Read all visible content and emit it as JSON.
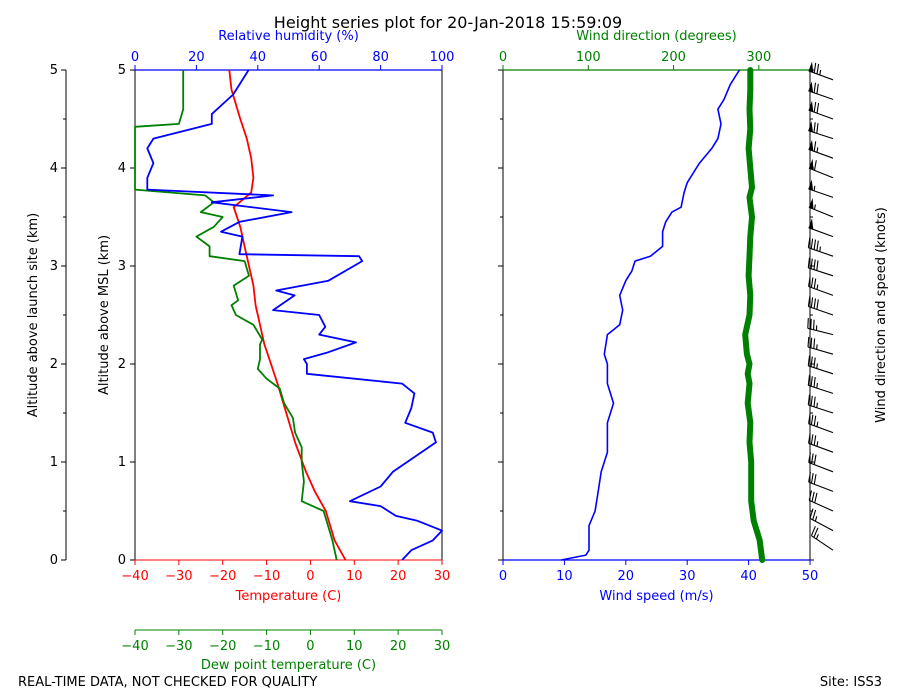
{
  "title": "Height series plot for 20-Jan-2018 15:59:09",
  "footer_left": "REAL-TIME DATA, NOT CHECKED FOR QUALITY",
  "footer_right": "Site: ISS3",
  "colors": {
    "temperature": "#ff0000",
    "dewpoint": "#008000",
    "humidity": "#0000ff",
    "wind_speed": "#0000ff",
    "wind_direction": "#008000",
    "axis": "#000000"
  },
  "chart_data": [
    {
      "type": "line",
      "name": "thermodynamic-panel",
      "ylabel_outer": "Altitude above launch site (km)",
      "ylabel_inner": "Altitude above MSL (km)",
      "ylim": [
        0,
        5
      ],
      "yticks": [
        0,
        1,
        2,
        3,
        4,
        5
      ],
      "x_bottom": {
        "label": "Temperature (C)",
        "range": [
          -40,
          30
        ],
        "ticks": [
          -40,
          -30,
          -20,
          -10,
          0,
          10,
          20,
          30
        ]
      },
      "x_top": {
        "label": "Relative humidity (%)",
        "range": [
          0,
          100
        ],
        "ticks": [
          0,
          20,
          40,
          60,
          80,
          100
        ]
      },
      "x_extra": {
        "label": "Dew point temperature (C)",
        "range": [
          -40,
          30
        ],
        "ticks": [
          -40,
          -30,
          -20,
          -10,
          0,
          10,
          20,
          30
        ]
      },
      "series": [
        {
          "name": "Temperature",
          "axis": "x_bottom",
          "points": [
            [
              8.0,
              0
            ],
            [
              5.5,
              0.2
            ],
            [
              3.5,
              0.5
            ],
            [
              1.0,
              0.7
            ],
            [
              -1.0,
              0.9
            ],
            [
              -3.5,
              1.2
            ],
            [
              -5.5,
              1.5
            ],
            [
              -7.5,
              1.8
            ],
            [
              -9.0,
              2.0
            ],
            [
              -10.5,
              2.2
            ],
            [
              -11.5,
              2.4
            ],
            [
              -12.0,
              2.5
            ],
            [
              -12.5,
              2.6
            ],
            [
              -13.0,
              2.8
            ],
            [
              -14.0,
              3.0
            ],
            [
              -15.0,
              3.2
            ],
            [
              -16.0,
              3.4
            ],
            [
              -17.5,
              3.6
            ],
            [
              -13.5,
              3.75
            ],
            [
              -13.0,
              3.9
            ],
            [
              -13.5,
              4.1
            ],
            [
              -14.5,
              4.3
            ],
            [
              -16.0,
              4.5
            ],
            [
              -18.0,
              4.8
            ],
            [
              -18.5,
              5.0
            ]
          ]
        },
        {
          "name": "Dew point",
          "axis": "x_extra",
          "points": [
            [
              6.0,
              0
            ],
            [
              5.0,
              0.2
            ],
            [
              3.0,
              0.5
            ],
            [
              -2.0,
              0.6
            ],
            [
              -1.5,
              0.8
            ],
            [
              -2.0,
              1.0
            ],
            [
              -2.0,
              1.15
            ],
            [
              -3.5,
              1.3
            ],
            [
              -4.0,
              1.45
            ],
            [
              -6.0,
              1.6
            ],
            [
              -7.0,
              1.75
            ],
            [
              -10.0,
              1.85
            ],
            [
              -12.0,
              1.95
            ],
            [
              -11.5,
              2.05
            ],
            [
              -11.5,
              2.2
            ],
            [
              -11.0,
              2.25
            ],
            [
              -13.0,
              2.4
            ],
            [
              -17.0,
              2.5
            ],
            [
              -18.0,
              2.6
            ],
            [
              -16.5,
              2.65
            ],
            [
              -17.5,
              2.8
            ],
            [
              -14.0,
              2.9
            ],
            [
              -15.0,
              3.05
            ],
            [
              -23.0,
              3.1
            ],
            [
              -23.0,
              3.2
            ],
            [
              -26.0,
              3.3
            ],
            [
              -22.0,
              3.4
            ],
            [
              -20.0,
              3.5
            ],
            [
              -25.0,
              3.55
            ],
            [
              -22.0,
              3.65
            ],
            [
              -24.0,
              3.72
            ],
            [
              -40.0,
              3.78
            ],
            [
              -40.0,
              4.2
            ],
            [
              -40.0,
              4.42
            ],
            [
              -30.0,
              4.45
            ],
            [
              -29.0,
              4.6
            ],
            [
              -29.0,
              4.8
            ],
            [
              -29.0,
              5.0
            ]
          ]
        },
        {
          "name": "Relative humidity",
          "axis": "x_top",
          "points": [
            [
              87,
              0
            ],
            [
              90,
              0.1
            ],
            [
              97,
              0.2
            ],
            [
              100,
              0.3
            ],
            [
              92,
              0.4
            ],
            [
              85,
              0.45
            ],
            [
              80,
              0.55
            ],
            [
              70,
              0.6
            ],
            [
              80,
              0.75
            ],
            [
              84,
              0.9
            ],
            [
              98,
              1.2
            ],
            [
              97,
              1.3
            ],
            [
              88,
              1.4
            ],
            [
              90,
              1.55
            ],
            [
              91,
              1.7
            ],
            [
              87,
              1.8
            ],
            [
              56,
              1.9
            ],
            [
              56,
              2.0
            ],
            [
              55,
              2.05
            ],
            [
              63,
              2.12
            ],
            [
              72,
              2.22
            ],
            [
              60,
              2.3
            ],
            [
              62,
              2.38
            ],
            [
              60,
              2.5
            ],
            [
              45,
              2.55
            ],
            [
              52,
              2.7
            ],
            [
              46,
              2.75
            ],
            [
              63,
              2.85
            ],
            [
              74,
              3.05
            ],
            [
              73,
              3.1
            ],
            [
              34,
              3.12
            ],
            [
              35,
              3.3
            ],
            [
              28,
              3.35
            ],
            [
              34,
              3.45
            ],
            [
              51,
              3.55
            ],
            [
              25,
              3.65
            ],
            [
              45,
              3.72
            ],
            [
              4,
              3.78
            ],
            [
              4,
              3.9
            ],
            [
              6,
              4.05
            ],
            [
              4,
              4.2
            ],
            [
              6,
              4.3
            ],
            [
              25,
              4.45
            ],
            [
              25,
              4.55
            ],
            [
              32,
              4.75
            ],
            [
              37,
              5.0
            ]
          ]
        }
      ]
    },
    {
      "type": "line",
      "name": "wind-panel",
      "ylim": [
        0,
        5
      ],
      "yticks": [
        0,
        1,
        2,
        3,
        4,
        5
      ],
      "x_bottom": {
        "label": "Wind speed (m/s)",
        "range": [
          0,
          50
        ],
        "ticks": [
          0,
          10,
          20,
          30,
          40,
          50
        ]
      },
      "x_top": {
        "label": "Wind direction (degrees)",
        "range": [
          0,
          360
        ],
        "ticks": [
          0,
          100,
          200,
          300
        ]
      },
      "right_label": "Wind direction and speed (knots)",
      "series": [
        {
          "name": "Wind speed",
          "axis": "x_bottom",
          "points": [
            [
              9.5,
              0
            ],
            [
              13.5,
              0.05
            ],
            [
              14.0,
              0.1
            ],
            [
              14.0,
              0.35
            ],
            [
              15.0,
              0.5
            ],
            [
              15.5,
              0.7
            ],
            [
              16.0,
              0.9
            ],
            [
              17.0,
              1.1
            ],
            [
              17.0,
              1.4
            ],
            [
              18.0,
              1.6
            ],
            [
              17.0,
              1.8
            ],
            [
              17.0,
              2.0
            ],
            [
              16.5,
              2.1
            ],
            [
              17.0,
              2.3
            ],
            [
              19.0,
              2.4
            ],
            [
              19.5,
              2.55
            ],
            [
              19.0,
              2.7
            ],
            [
              20.0,
              2.85
            ],
            [
              21.0,
              2.95
            ],
            [
              21.5,
              3.05
            ],
            [
              24.0,
              3.1
            ],
            [
              26.0,
              3.2
            ],
            [
              26.0,
              3.35
            ],
            [
              26.5,
              3.45
            ],
            [
              27.5,
              3.55
            ],
            [
              29.0,
              3.6
            ],
            [
              29.5,
              3.75
            ],
            [
              30.0,
              3.85
            ],
            [
              31.5,
              4.0
            ],
            [
              32.0,
              4.05
            ],
            [
              34.0,
              4.2
            ],
            [
              35.0,
              4.3
            ],
            [
              35.5,
              4.45
            ],
            [
              35.0,
              4.6
            ],
            [
              36.0,
              4.7
            ],
            [
              37.0,
              4.85
            ],
            [
              38.5,
              5.0
            ]
          ]
        },
        {
          "name": "Wind direction",
          "axis": "x_top",
          "points": [
            [
              304,
              0
            ],
            [
              301,
              0.2
            ],
            [
              294,
              0.4
            ],
            [
              291,
              0.6
            ],
            [
              291,
              1.0
            ],
            [
              289,
              1.2
            ],
            [
              290,
              1.4
            ],
            [
              287,
              1.6
            ],
            [
              289,
              1.8
            ],
            [
              287,
              1.9
            ],
            [
              289,
              2.0
            ],
            [
              286,
              2.1
            ],
            [
              284,
              2.3
            ],
            [
              289,
              2.5
            ],
            [
              290,
              2.7
            ],
            [
              288,
              2.9
            ],
            [
              289,
              3.1
            ],
            [
              290,
              3.3
            ],
            [
              292,
              3.5
            ],
            [
              289,
              3.7
            ],
            [
              292,
              3.8
            ],
            [
              290,
              4.0
            ],
            [
              288,
              4.2
            ],
            [
              290,
              4.4
            ],
            [
              289,
              4.6
            ],
            [
              290,
              4.8
            ],
            [
              290,
              5.0
            ]
          ]
        }
      ],
      "barbs": [
        {
          "alt": 0.1,
          "dir": 304,
          "kt": 25
        },
        {
          "alt": 0.3,
          "dir": 298,
          "kt": 27
        },
        {
          "alt": 0.5,
          "dir": 294,
          "kt": 29
        },
        {
          "alt": 0.7,
          "dir": 291,
          "kt": 30
        },
        {
          "alt": 0.9,
          "dir": 291,
          "kt": 31
        },
        {
          "alt": 1.1,
          "dir": 290,
          "kt": 33
        },
        {
          "alt": 1.3,
          "dir": 290,
          "kt": 33
        },
        {
          "alt": 1.5,
          "dir": 288,
          "kt": 34
        },
        {
          "alt": 1.7,
          "dir": 288,
          "kt": 35
        },
        {
          "alt": 1.9,
          "dir": 288,
          "kt": 33
        },
        {
          "alt": 2.1,
          "dir": 286,
          "kt": 33
        },
        {
          "alt": 2.3,
          "dir": 284,
          "kt": 33
        },
        {
          "alt": 2.5,
          "dir": 289,
          "kt": 38
        },
        {
          "alt": 2.7,
          "dir": 290,
          "kt": 37
        },
        {
          "alt": 2.9,
          "dir": 288,
          "kt": 40
        },
        {
          "alt": 3.1,
          "dir": 289,
          "kt": 45
        },
        {
          "alt": 3.3,
          "dir": 290,
          "kt": 51
        },
        {
          "alt": 3.5,
          "dir": 292,
          "kt": 53
        },
        {
          "alt": 3.7,
          "dir": 289,
          "kt": 57
        },
        {
          "alt": 3.9,
          "dir": 292,
          "kt": 60
        },
        {
          "alt": 4.1,
          "dir": 290,
          "kt": 63
        },
        {
          "alt": 4.3,
          "dir": 288,
          "kt": 68
        },
        {
          "alt": 4.5,
          "dir": 290,
          "kt": 68
        },
        {
          "alt": 4.7,
          "dir": 289,
          "kt": 70
        },
        {
          "alt": 4.9,
          "dir": 290,
          "kt": 74
        }
      ]
    }
  ]
}
